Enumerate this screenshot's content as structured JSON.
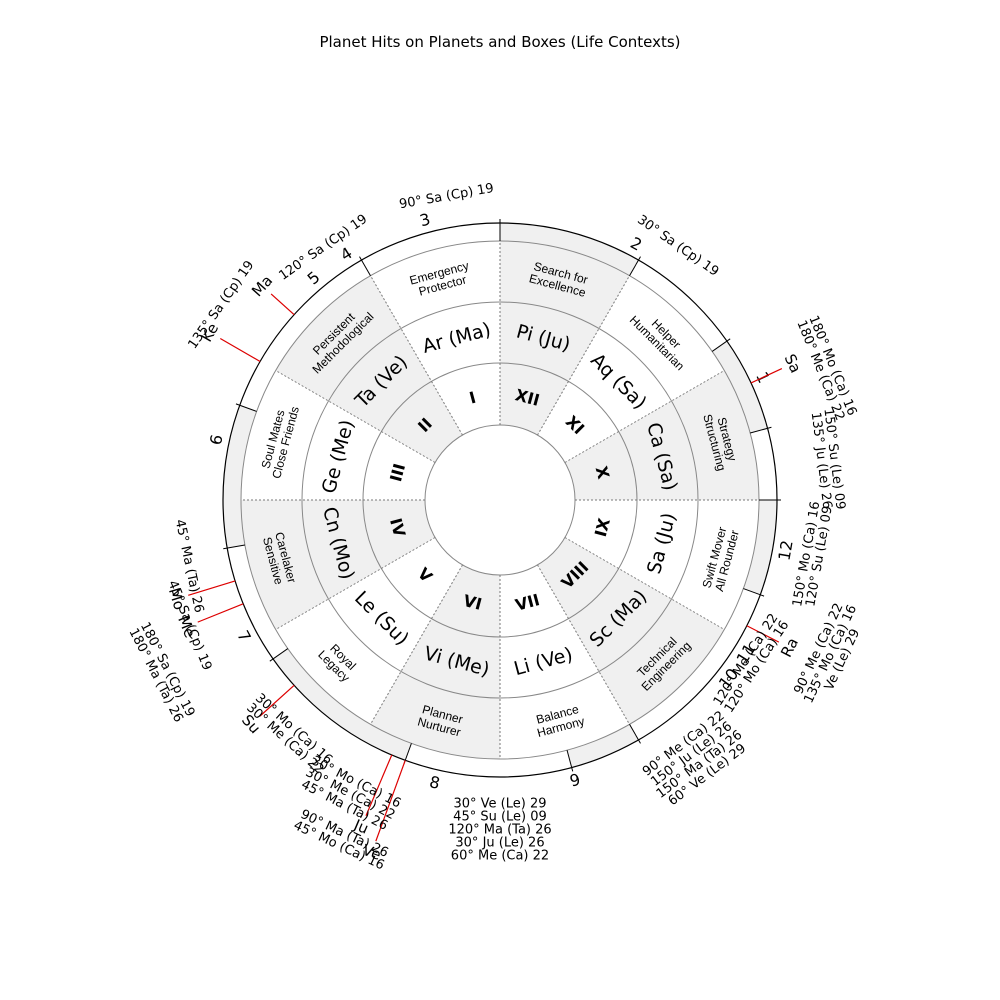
{
  "title": "Planet Hits on Planets and Boxes (Life Contexts)",
  "colors": {
    "shaded": "#f0f0f0",
    "line": "#888888",
    "ink": "#000000",
    "planet": "#dd0000"
  },
  "rashis": [
    {
      "label": "Ar (Ma)",
      "roman": "I"
    },
    {
      "label": "Ta (Ve)",
      "roman": "II"
    },
    {
      "label": "Ge (Me)",
      "roman": "III"
    },
    {
      "label": "Cn (Mo)",
      "roman": "IV"
    },
    {
      "label": "Le (Su)",
      "roman": "V"
    },
    {
      "label": "Vi (Me)",
      "roman": "VI"
    },
    {
      "label": "Li (Ve)",
      "roman": "VII"
    },
    {
      "label": "Sc (Ma)",
      "roman": "VIII"
    },
    {
      "label": "Sa (Ju)",
      "roman": "IX"
    },
    {
      "label": "Ca (Sa)",
      "roman": "X"
    },
    {
      "label": "Aq (Sa)",
      "roman": "XI"
    },
    {
      "label": "Pi (Ju)",
      "roman": "XII"
    }
  ],
  "contexts": [
    [
      "Emergency",
      "Protector"
    ],
    [
      "Persistent",
      "Methodological"
    ],
    [
      "Soul Mates",
      "Close Friends"
    ],
    [
      "Carelaker",
      "Sensitive"
    ],
    [
      "Royal",
      "Legacy"
    ],
    [
      "Planner",
      "Nurturer"
    ],
    [
      "Balance",
      "Harmony"
    ],
    [
      "Technical",
      "Engineering"
    ],
    [
      "Swift Mover",
      "All Rounder"
    ],
    [
      "Strategy",
      "Structuring"
    ],
    [
      "Helper",
      "Humanitarian"
    ],
    [
      "Search for",
      "Excellence"
    ]
  ],
  "house_numbers": [
    "1",
    "2",
    "3",
    "4",
    "5",
    "6",
    "7",
    "8",
    "9",
    "10",
    "11",
    "12"
  ],
  "planets": [
    "Sa",
    "Ke",
    "Ma",
    "Mo",
    "Me",
    "Su",
    "Ju",
    "Ve",
    "Ra"
  ],
  "hit_lists": [
    [
      "30° Sa (Cp) 19"
    ],
    [
      "90° Sa (Cp) 19"
    ],
    [
      "120° Sa (Cp) 19"
    ],
    [
      "135° Sa (Cp) 19"
    ],
    [
      "180° Me (Ca) 22",
      "180° Mo (Ca) 16"
    ],
    [
      "135° Ju (Le) 26",
      "150° Su (Le) 09"
    ],
    [
      "150° Mo (Ca) 16",
      "120° Su (Le) 09"
    ],
    [
      "90° Me (Ca) 22",
      "135° Mo (Ca) 16",
      "Ve (Le) 29"
    ],
    [
      "120° Me (Ca) 22",
      "120° Mo (Ca) 16"
    ],
    [
      "90° Me (Ca) 22",
      "150° Ju (Le) 26",
      "150° Ma (Ta) 26",
      "60° Ve (Le) 29"
    ],
    [
      "30° Ve (Le) 29",
      "45° Su (Le) 09",
      "120° Ma (Ta) 26",
      "30° Ju (Le) 26",
      "60° Me (Ca) 22"
    ],
    [
      "45° Ma (Ta) 26"
    ],
    [
      "45° Sa (Cp) 19"
    ],
    [
      "180° Sa (Cp) 19",
      "180° Ma (Ta) 26"
    ],
    [
      "30° Mo (Ca) 16",
      "30° Me (Ca) 22"
    ],
    [
      "30° Mo (Ca) 16",
      "30° Me (Ca) 22",
      "45° Ma (Ta) 26"
    ],
    [
      "90° Ma (Ta) 26",
      "45° Mo (Ca) 16"
    ]
  ]
}
